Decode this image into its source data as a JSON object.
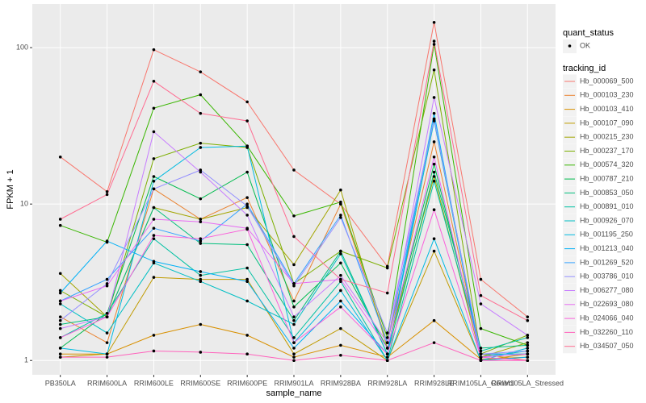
{
  "chart_data": {
    "type": "line",
    "log_y": true,
    "grid": true,
    "background": "#EBEBEB",
    "x_label": "sample_name",
    "y_label": "FPKM + 1",
    "categories": [
      "PB350LA",
      "RRIM600LA",
      "RRIM600LE",
      "RRIM600SE",
      "RRIM600PE",
      "RRIM901LA",
      "RRIM928BA",
      "RRIM928LA",
      "RRIM928LE",
      "RRIM105LA_Control",
      "RRIM105LA_Stressed"
    ],
    "ylim": [
      0.81,
      190
    ],
    "yticks": [
      1,
      10,
      100
    ],
    "shape_legend": {
      "title": "quant_status",
      "labels": [
        "OK"
      ]
    },
    "legend_title": "tracking_id",
    "legend_position": "right",
    "series": [
      {
        "name": "Hb_000069_500",
        "color": "#F8766D",
        "values": [
          20,
          12,
          97,
          70,
          45,
          16.5,
          10,
          4,
          145,
          3.3,
          1.9
        ]
      },
      {
        "name": "Hb_000103_230",
        "color": "#EA8331",
        "values": [
          1.9,
          1.3,
          12.5,
          8,
          11,
          2.4,
          10,
          1.3,
          25,
          1.1,
          1.0
        ]
      },
      {
        "name": "Hb_000103_410",
        "color": "#D89000",
        "values": [
          1.1,
          1.1,
          1.45,
          1.7,
          1.45,
          1.05,
          1.25,
          1.05,
          1.8,
          1.02,
          1.05
        ]
      },
      {
        "name": "Hb_000107_090",
        "color": "#C09B00",
        "values": [
          1.05,
          1.1,
          3.4,
          3.3,
          3.3,
          1.1,
          1.6,
          1.0,
          5,
          1.0,
          1.1
        ]
      },
      {
        "name": "Hb_000215_230",
        "color": "#A3A500",
        "values": [
          3.6,
          1.9,
          9.5,
          8,
          9.5,
          4.1,
          12.3,
          1.2,
          15,
          1.05,
          1.3
        ]
      },
      {
        "name": "Hb_000237_170",
        "color": "#7CAE00",
        "values": [
          2.8,
          1.9,
          19.5,
          24.5,
          23,
          3.1,
          5,
          3.9,
          72,
          1.1,
          1.45
        ]
      },
      {
        "name": "Hb_000574_320",
        "color": "#39B600",
        "values": [
          7.3,
          5.7,
          41,
          50,
          23.5,
          8.4,
          10.3,
          1.4,
          105,
          1.6,
          1.25
        ]
      },
      {
        "name": "Hb_000787_210",
        "color": "#00BB4E",
        "values": [
          1.2,
          2,
          15,
          10.8,
          16,
          2.2,
          4.2,
          1.2,
          18,
          1.1,
          1.1
        ]
      },
      {
        "name": "Hb_000853_050",
        "color": "#00BF7D",
        "values": [
          1.7,
          1.9,
          9.5,
          5.6,
          5.5,
          1.8,
          5,
          1.1,
          16,
          1.2,
          1.25
        ]
      },
      {
        "name": "Hb_000891_010",
        "color": "#00C1A3",
        "values": [
          1.4,
          2,
          6,
          3.5,
          3.9,
          1.4,
          3.2,
          1.0,
          14,
          1.15,
          1.4
        ]
      },
      {
        "name": "Hb_000926_070",
        "color": "#00BFC4",
        "values": [
          2.3,
          1.5,
          4.2,
          3.2,
          2.4,
          1.7,
          4.8,
          1.1,
          34,
          1.05,
          1.15
        ]
      },
      {
        "name": "Hb_001195_250",
        "color": "#00BAE0",
        "values": [
          1.2,
          1.1,
          14,
          23,
          23.5,
          1.3,
          2.8,
          1.0,
          6,
          1.0,
          1.2
        ]
      },
      {
        "name": "Hb_001213_040",
        "color": "#00B0F6",
        "values": [
          2.7,
          5.8,
          4.3,
          3.7,
          3.2,
          1.2,
          2.4,
          1.1,
          38,
          1.0,
          1.05
        ]
      },
      {
        "name": "Hb_001269_520",
        "color": "#35A2FF",
        "values": [
          2.4,
          3.3,
          7,
          5.8,
          10,
          3.1,
          8.5,
          1.3,
          35,
          1.1,
          1.1
        ]
      },
      {
        "name": "Hb_003786_010",
        "color": "#9590FF",
        "values": [
          1.8,
          3.1,
          12.5,
          16.5,
          9.7,
          3,
          8.2,
          1.5,
          35,
          1.1,
          1.15
        ]
      },
      {
        "name": "Hb_006277_080",
        "color": "#C77CFF",
        "values": [
          1.6,
          1.9,
          29,
          16,
          8.5,
          1.9,
          3.5,
          1.3,
          48,
          2.3,
          1.45
        ]
      },
      {
        "name": "Hb_022693_080",
        "color": "#E76BF3",
        "values": [
          2.4,
          3,
          8,
          7.7,
          7,
          3.1,
          3.3,
          1.2,
          20,
          1.05,
          1.1
        ]
      },
      {
        "name": "Hb_024066_040",
        "color": "#FA62DB",
        "values": [
          1.4,
          1.9,
          6.3,
          6,
          6.9,
          1.3,
          2.2,
          1.1,
          9.2,
          1.05,
          1.0
        ]
      },
      {
        "name": "Hb_032260_110",
        "color": "#FF62BC",
        "values": [
          1.05,
          1.05,
          1.15,
          1.13,
          1.1,
          1.0,
          1.08,
          1.0,
          1.3,
          1.0,
          1.0
        ]
      },
      {
        "name": "Hb_034507_050",
        "color": "#FF6C91",
        "values": [
          8,
          11.5,
          61,
          38,
          34,
          6.2,
          3.3,
          2.7,
          110,
          2.6,
          1.8
        ]
      }
    ]
  }
}
